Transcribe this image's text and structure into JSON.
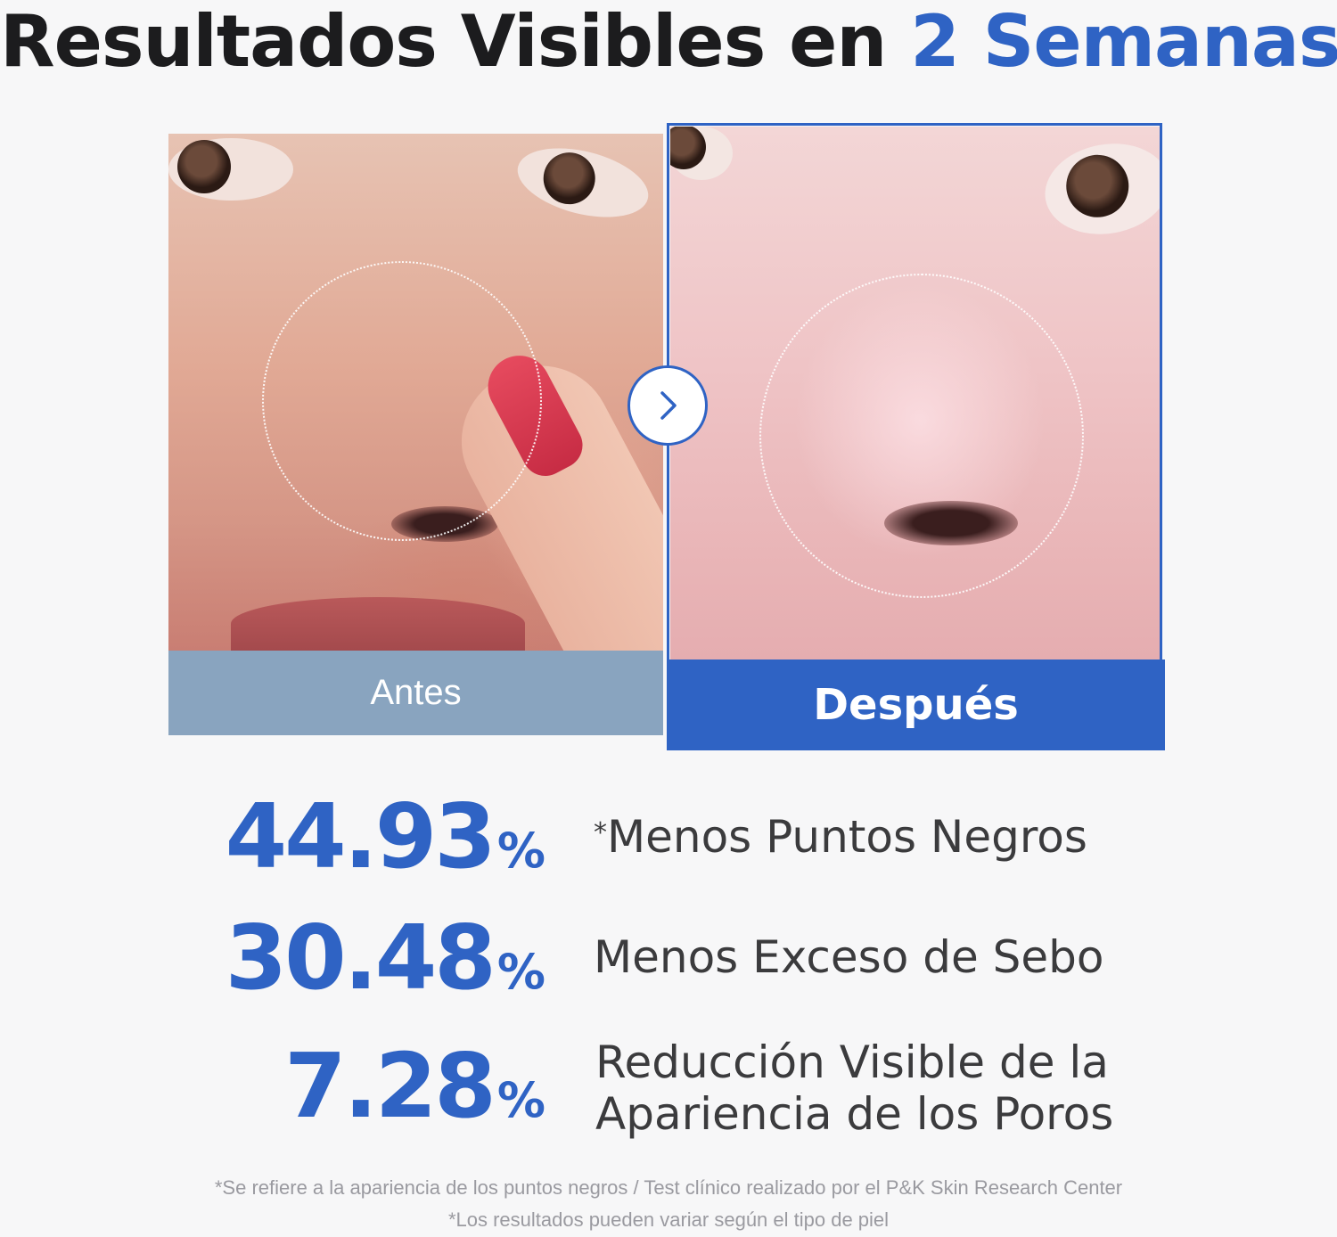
{
  "title": {
    "main": "Resultados Visibles en ",
    "accent": "2 Semanas"
  },
  "comparison": {
    "before_label": "Antes",
    "after_label": "Después"
  },
  "stats": [
    {
      "value": "44.93",
      "unit": "%",
      "marker": "*",
      "label": "Menos Puntos Negros"
    },
    {
      "value": "30.48",
      "unit": "%",
      "label": "Menos Exceso de Sebo"
    },
    {
      "value": "7.28",
      "unit": "%",
      "label_line1": "Reducción Visible de la",
      "label_line2": "Apariencia de los Poros"
    }
  ],
  "footnotes": [
    "*Se refiere a la apariencia de los puntos negros / Test clínico realizado por el P&K Skin Research Center",
    "*Los resultados pueden variar según el tipo de piel"
  ],
  "colors": {
    "accent": "#2f63c4",
    "before_bar": "#89a4bf",
    "text_dark": "#1c1c1e"
  }
}
